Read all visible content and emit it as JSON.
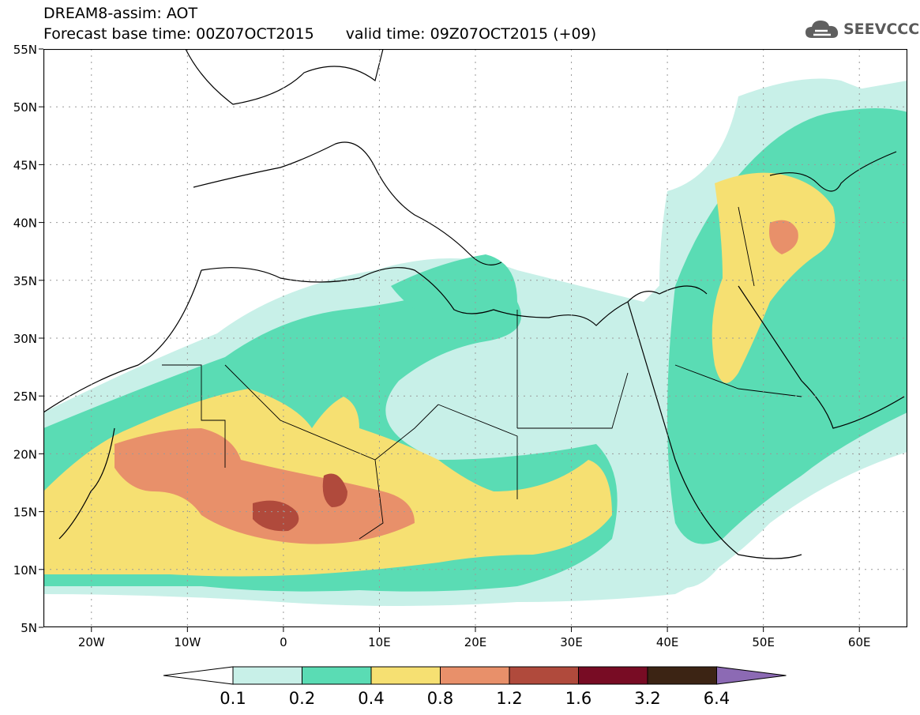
{
  "header": {
    "title": "DREAM8-assim: AOT",
    "base_time": "Forecast base time: 00Z07OCT2015",
    "valid_time": "valid time: 09Z07OCT2015 (+09)"
  },
  "logo": {
    "text": "SEEVCCC",
    "icon": "cloud-icon"
  },
  "map": {
    "region": "North Africa, Europe and Middle East",
    "lat_labels": [
      "55N",
      "50N",
      "45N",
      "40N",
      "35N",
      "30N",
      "25N",
      "20N",
      "15N",
      "10N",
      "5N"
    ],
    "lon_labels": [
      "20W",
      "10W",
      "0",
      "10E",
      "20E",
      "30E",
      "40E",
      "50E",
      "60E"
    ],
    "lon_range": [
      -25,
      65
    ],
    "lat_range": [
      5,
      55
    ],
    "grid": "dotted"
  },
  "colorbar": {
    "labels": [
      "0.1",
      "0.2",
      "0.4",
      "0.8",
      "1.2",
      "1.6",
      "3.2",
      "6.4"
    ],
    "colors": [
      "#ffffff",
      "#c8f0e8",
      "#5adcb4",
      "#f6e072",
      "#e8906a",
      "#b04a3c",
      "#780c24",
      "#3c2414",
      "#8c6ab4"
    ]
  }
}
